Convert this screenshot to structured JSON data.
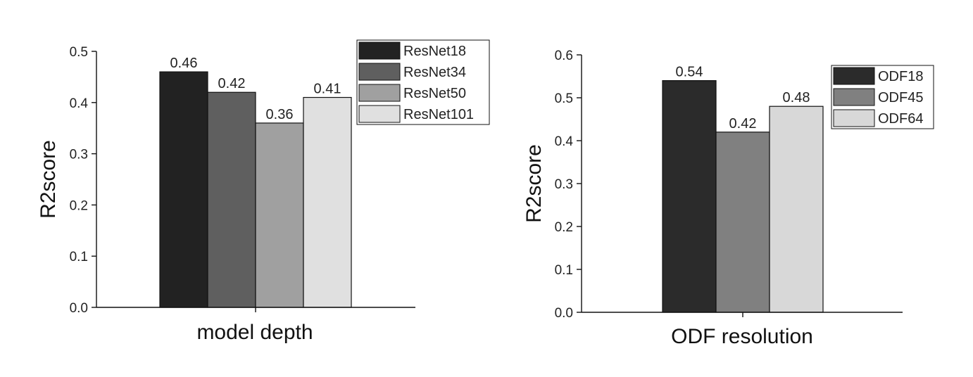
{
  "chart_data": [
    {
      "type": "bar",
      "title": "",
      "xlabel": "model depth",
      "ylabel": "R2score",
      "ylim": [
        0,
        0.5
      ],
      "yticks": [
        "0.0",
        "0.1",
        "0.2",
        "0.3",
        "0.4",
        "0.5"
      ],
      "legend_position": "top-right",
      "series": [
        {
          "name": "ResNet18",
          "value": 0.46,
          "label": "0.46",
          "color": "#222222"
        },
        {
          "name": "ResNet34",
          "value": 0.42,
          "label": "0.42",
          "color": "#5f5f5f"
        },
        {
          "name": "ResNet50",
          "value": 0.36,
          "label": "0.36",
          "color": "#a0a0a0"
        },
        {
          "name": "ResNet101",
          "value": 0.41,
          "label": "0.41",
          "color": "#e0e0e0"
        }
      ]
    },
    {
      "type": "bar",
      "title": "",
      "xlabel": "ODF resolution",
      "ylabel": "R2score",
      "ylim": [
        0,
        0.6
      ],
      "yticks": [
        "0.0",
        "0.1",
        "0.2",
        "0.3",
        "0.4",
        "0.5",
        "0.6"
      ],
      "legend_position": "top-right",
      "series": [
        {
          "name": "ODF18",
          "value": 0.54,
          "label": "0.54",
          "color": "#2b2b2b"
        },
        {
          "name": "ODF45",
          "value": 0.42,
          "label": "0.42",
          "color": "#808080"
        },
        {
          "name": "ODF64",
          "value": 0.48,
          "label": "0.48",
          "color": "#d8d8d8"
        }
      ]
    }
  ]
}
